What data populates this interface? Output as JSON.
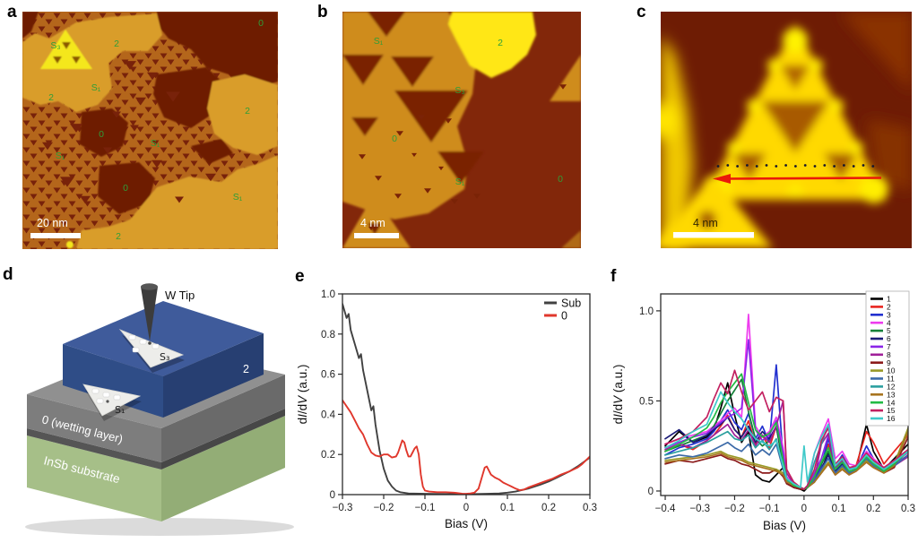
{
  "figure": {
    "panel_letters": {
      "a": "a",
      "b": "b",
      "c": "c",
      "d": "d",
      "e": "e",
      "f": "f"
    },
    "colors": {
      "stm_dark": "#6e1f04",
      "stm_terrace": "#b4661b",
      "stm_terrace_b": "#cf8c1e",
      "stm_light": "#d99d2b",
      "stm_bright": "#f4e71d",
      "label_green": "#2f9e38",
      "arrow_red": "#ea1a0a",
      "sub_curve": "#414141",
      "o_curve": "#e0372c"
    },
    "panel_a": {
      "scale_bar": "20 nm",
      "labels": [
        "S₃",
        "2",
        "0",
        "2",
        "S₁",
        "2",
        "0",
        "S₁",
        "S₁",
        "0",
        "S₁",
        "2"
      ]
    },
    "panel_b": {
      "scale_bar": "4 nm",
      "labels": [
        "S₁",
        "2",
        "S₃",
        "0",
        "S₁",
        "0"
      ]
    },
    "panel_c": {
      "scale_bar": "4 nm",
      "profile_dots": 17
    },
    "panel_d": {
      "tip": "W Tip",
      "s3": "S₃",
      "s1": "S₁",
      "layer2": "2",
      "wetting": "0 (wetting layer)",
      "substrate": "InSb substrate"
    }
  },
  "chart_data": [
    {
      "id": "e",
      "type": "line",
      "xlabel": "Bias (V)",
      "ylabel_parts": [
        {
          "t": "d",
          "i": false
        },
        {
          "t": "I",
          "i": true
        },
        {
          "t": "/d",
          "i": false
        },
        {
          "t": "V",
          "i": true
        },
        {
          "t": " (a.u.)",
          "i": false
        }
      ],
      "xlim": [
        -0.3,
        0.3
      ],
      "ylim": [
        0,
        1.0
      ],
      "grid": false,
      "legend_position": "top-right",
      "xticks": {
        "values": [
          -0.3,
          -0.2,
          -0.1,
          0,
          0.1,
          0.2,
          0.3
        ],
        "labels": [
          "−0.3",
          "−0.2",
          "−0.1",
          "0",
          "0.1",
          "0.2",
          "0.3"
        ]
      },
      "yticks": {
        "values": [
          0,
          0.2,
          0.4,
          0.6,
          0.8,
          1.0
        ],
        "labels": [
          "0",
          "0.2",
          "0.4",
          "0.6",
          "0.8",
          "1.0"
        ]
      },
      "series": [
        {
          "name": "Sub",
          "color": "#414141",
          "x": [
            -0.3,
            -0.29,
            -0.285,
            -0.28,
            -0.27,
            -0.26,
            -0.255,
            -0.25,
            -0.24,
            -0.23,
            -0.225,
            -0.22,
            -0.21,
            -0.2,
            -0.19,
            -0.18,
            -0.17,
            -0.16,
            -0.14,
            -0.1,
            -0.05,
            0.0,
            0.05,
            0.08,
            0.1,
            0.12,
            0.15,
            0.18,
            0.2,
            0.22,
            0.25,
            0.27,
            0.3
          ],
          "y": [
            0.95,
            0.88,
            0.9,
            0.82,
            0.75,
            0.68,
            0.7,
            0.62,
            0.52,
            0.42,
            0.44,
            0.35,
            0.22,
            0.13,
            0.07,
            0.04,
            0.02,
            0.012,
            0.006,
            0.004,
            0.003,
            0.002,
            0.004,
            0.006,
            0.01,
            0.015,
            0.03,
            0.05,
            0.065,
            0.085,
            0.115,
            0.14,
            0.185
          ]
        },
        {
          "name": "0",
          "color": "#e0372c",
          "x": [
            -0.3,
            -0.29,
            -0.28,
            -0.27,
            -0.26,
            -0.25,
            -0.24,
            -0.23,
            -0.22,
            -0.21,
            -0.2,
            -0.19,
            -0.18,
            -0.17,
            -0.165,
            -0.16,
            -0.155,
            -0.15,
            -0.145,
            -0.14,
            -0.135,
            -0.13,
            -0.125,
            -0.12,
            -0.115,
            -0.11,
            -0.105,
            -0.1,
            -0.09,
            -0.07,
            -0.05,
            -0.03,
            -0.01,
            0.0,
            0.01,
            0.02,
            0.03,
            0.04,
            0.045,
            0.05,
            0.055,
            0.06,
            0.07,
            0.08,
            0.09,
            0.1,
            0.11,
            0.12,
            0.13,
            0.14,
            0.15,
            0.17,
            0.19,
            0.21,
            0.23,
            0.25,
            0.27,
            0.28,
            0.3
          ],
          "y": [
            0.47,
            0.44,
            0.41,
            0.37,
            0.33,
            0.3,
            0.25,
            0.21,
            0.195,
            0.19,
            0.2,
            0.2,
            0.185,
            0.19,
            0.21,
            0.24,
            0.27,
            0.26,
            0.22,
            0.19,
            0.19,
            0.21,
            0.23,
            0.24,
            0.2,
            0.1,
            0.04,
            0.02,
            0.015,
            0.012,
            0.012,
            0.01,
            0.005,
            0.004,
            0.006,
            0.01,
            0.03,
            0.1,
            0.135,
            0.14,
            0.12,
            0.1,
            0.085,
            0.075,
            0.06,
            0.05,
            0.04,
            0.03,
            0.022,
            0.025,
            0.035,
            0.05,
            0.065,
            0.08,
            0.1,
            0.115,
            0.135,
            0.15,
            0.19
          ]
        }
      ]
    },
    {
      "id": "f",
      "type": "line",
      "xlabel": "Bias (V)",
      "ylabel_parts": [
        {
          "t": "d",
          "i": false
        },
        {
          "t": "I",
          "i": true
        },
        {
          "t": "/d",
          "i": false
        },
        {
          "t": "V",
          "i": true
        },
        {
          "t": " (a.u.)",
          "i": false
        }
      ],
      "xlim": [
        -0.413,
        0.3
      ],
      "ylim": [
        -0.025,
        1.094
      ],
      "grid": false,
      "legend_position": "top-right-box",
      "xticks": {
        "values": [
          -0.4,
          -0.3,
          -0.2,
          -0.1,
          0,
          0.1,
          0.2,
          0.3
        ],
        "labels": [
          "−0.4",
          "−0.3",
          "−0.2",
          "−0.1",
          "0",
          "0.1",
          "0.2",
          "0.3"
        ]
      },
      "yticks": {
        "values": [
          0,
          0.5,
          1.0
        ],
        "labels": [
          "0",
          "0.5",
          "1.0"
        ]
      },
      "x": [
        -0.4,
        -0.36,
        -0.32,
        -0.28,
        -0.26,
        -0.24,
        -0.22,
        -0.2,
        -0.18,
        -0.16,
        -0.14,
        -0.12,
        -0.1,
        -0.08,
        -0.06,
        -0.05,
        -0.03,
        -0.01,
        0.0,
        0.01,
        0.03,
        0.05,
        0.07,
        0.09,
        0.11,
        0.13,
        0.15,
        0.18,
        0.2,
        0.23,
        0.26,
        0.3
      ],
      "series": [
        {
          "name": "1",
          "color": "#000000",
          "y": [
            0.25,
            0.33,
            0.27,
            0.3,
            0.34,
            0.46,
            0.6,
            0.42,
            0.27,
            0.33,
            0.09,
            0.06,
            0.05,
            0.09,
            0.13,
            0.05,
            0.02,
            0.01,
            0.0,
            0.02,
            0.05,
            0.12,
            0.21,
            0.1,
            0.15,
            0.1,
            0.12,
            0.37,
            0.22,
            0.12,
            0.18,
            0.26
          ]
        },
        {
          "name": "2",
          "color": "#e8251f",
          "y": [
            0.22,
            0.26,
            0.23,
            0.28,
            0.31,
            0.36,
            0.42,
            0.34,
            0.3,
            0.39,
            0.26,
            0.31,
            0.24,
            0.36,
            0.14,
            0.05,
            0.03,
            0.02,
            0.01,
            0.03,
            0.08,
            0.15,
            0.26,
            0.12,
            0.18,
            0.12,
            0.14,
            0.33,
            0.27,
            0.15,
            0.22,
            0.31
          ]
        },
        {
          "name": "3",
          "color": "#2230cf",
          "y": [
            0.2,
            0.24,
            0.26,
            0.29,
            0.33,
            0.39,
            0.45,
            0.38,
            0.34,
            0.43,
            0.29,
            0.36,
            0.27,
            0.7,
            0.18,
            0.06,
            0.03,
            0.02,
            0.01,
            0.02,
            0.06,
            0.14,
            0.29,
            0.14,
            0.2,
            0.13,
            0.12,
            0.25,
            0.18,
            0.12,
            0.16,
            0.22
          ]
        },
        {
          "name": "4",
          "color": "#ee3cee",
          "y": [
            0.26,
            0.29,
            0.31,
            0.33,
            0.36,
            0.39,
            0.43,
            0.46,
            0.41,
            0.98,
            0.36,
            0.3,
            0.33,
            0.41,
            0.24,
            0.08,
            0.04,
            0.02,
            0.01,
            0.03,
            0.21,
            0.31,
            0.4,
            0.18,
            0.22,
            0.15,
            0.14,
            0.22,
            0.18,
            0.13,
            0.17,
            0.21
          ]
        },
        {
          "name": "5",
          "color": "#16813a",
          "y": [
            0.22,
            0.25,
            0.28,
            0.31,
            0.36,
            0.43,
            0.5,
            0.56,
            0.62,
            0.44,
            0.29,
            0.25,
            0.28,
            0.36,
            0.14,
            0.06,
            0.03,
            0.02,
            0.01,
            0.02,
            0.08,
            0.15,
            0.22,
            0.12,
            0.16,
            0.11,
            0.12,
            0.2,
            0.16,
            0.11,
            0.15,
            0.22
          ]
        },
        {
          "name": "6",
          "color": "#1b1b78",
          "y": [
            0.29,
            0.34,
            0.27,
            0.31,
            0.34,
            0.37,
            0.41,
            0.34,
            0.3,
            0.36,
            0.27,
            0.33,
            0.29,
            0.36,
            0.17,
            0.06,
            0.03,
            0.02,
            0.01,
            0.02,
            0.06,
            0.12,
            0.2,
            0.11,
            0.15,
            0.1,
            0.12,
            0.18,
            0.15,
            0.11,
            0.14,
            0.2
          ]
        },
        {
          "name": "7",
          "color": "#8a25e8",
          "y": [
            0.24,
            0.27,
            0.3,
            0.32,
            0.35,
            0.38,
            0.41,
            0.43,
            0.46,
            0.84,
            0.34,
            0.28,
            0.31,
            0.39,
            0.21,
            0.07,
            0.03,
            0.02,
            0.01,
            0.02,
            0.1,
            0.18,
            0.31,
            0.14,
            0.18,
            0.12,
            0.13,
            0.2,
            0.16,
            0.12,
            0.15,
            0.2
          ]
        },
        {
          "name": "8",
          "color": "#a0209a",
          "y": [
            0.23,
            0.26,
            0.24,
            0.28,
            0.31,
            0.34,
            0.37,
            0.31,
            0.28,
            0.34,
            0.25,
            0.31,
            0.27,
            0.36,
            0.5,
            0.1,
            0.04,
            0.02,
            0.01,
            0.02,
            0.07,
            0.26,
            0.32,
            0.13,
            0.17,
            0.11,
            0.12,
            0.19,
            0.15,
            0.11,
            0.14,
            0.19
          ]
        },
        {
          "name": "9",
          "color": "#8b1a1a",
          "y": [
            0.15,
            0.17,
            0.16,
            0.18,
            0.19,
            0.2,
            0.18,
            0.17,
            0.15,
            0.14,
            0.12,
            0.1,
            0.1,
            0.12,
            0.08,
            0.04,
            0.02,
            0.01,
            0.01,
            0.02,
            0.05,
            0.1,
            0.15,
            0.09,
            0.12,
            0.09,
            0.11,
            0.16,
            0.13,
            0.1,
            0.13,
            0.3
          ]
        },
        {
          "name": "10",
          "color": "#999926",
          "y": [
            0.17,
            0.18,
            0.19,
            0.2,
            0.21,
            0.22,
            0.2,
            0.19,
            0.18,
            0.16,
            0.15,
            0.14,
            0.13,
            0.12,
            0.1,
            0.05,
            0.03,
            0.02,
            0.01,
            0.02,
            0.06,
            0.11,
            0.16,
            0.1,
            0.13,
            0.1,
            0.12,
            0.17,
            0.14,
            0.11,
            0.15,
            0.35
          ]
        },
        {
          "name": "11",
          "color": "#3c6aa8",
          "y": [
            0.18,
            0.2,
            0.19,
            0.21,
            0.23,
            0.25,
            0.27,
            0.24,
            0.22,
            0.26,
            0.2,
            0.23,
            0.2,
            0.26,
            0.12,
            0.05,
            0.03,
            0.02,
            0.01,
            0.02,
            0.06,
            0.12,
            0.18,
            0.1,
            0.14,
            0.1,
            0.12,
            0.18,
            0.14,
            0.11,
            0.14,
            0.2
          ]
        },
        {
          "name": "12",
          "color": "#2b9f9f",
          "y": [
            0.2,
            0.22,
            0.24,
            0.27,
            0.29,
            0.31,
            0.33,
            0.29,
            0.28,
            0.31,
            0.24,
            0.28,
            0.23,
            0.29,
            0.13,
            0.06,
            0.03,
            0.02,
            0.01,
            0.03,
            0.16,
            0.26,
            0.37,
            0.14,
            0.18,
            0.12,
            0.13,
            0.2,
            0.16,
            0.12,
            0.16,
            0.22
          ]
        },
        {
          "name": "13",
          "color": "#a8741f",
          "y": [
            0.16,
            0.17,
            0.18,
            0.19,
            0.2,
            0.21,
            0.19,
            0.18,
            0.17,
            0.15,
            0.14,
            0.13,
            0.12,
            0.11,
            0.09,
            0.05,
            0.03,
            0.02,
            0.01,
            0.02,
            0.05,
            0.1,
            0.15,
            0.09,
            0.12,
            0.09,
            0.11,
            0.16,
            0.13,
            0.1,
            0.14,
            0.33
          ]
        },
        {
          "name": "14",
          "color": "#22bb44",
          "y": [
            0.22,
            0.26,
            0.3,
            0.35,
            0.41,
            0.49,
            0.55,
            0.6,
            0.65,
            0.49,
            0.34,
            0.3,
            0.32,
            0.38,
            0.17,
            0.07,
            0.03,
            0.02,
            0.01,
            0.02,
            0.08,
            0.16,
            0.24,
            0.12,
            0.16,
            0.11,
            0.12,
            0.19,
            0.15,
            0.11,
            0.15,
            0.22
          ]
        },
        {
          "name": "15",
          "color": "#c22060",
          "y": [
            0.26,
            0.29,
            0.33,
            0.41,
            0.51,
            0.6,
            0.54,
            0.67,
            0.55,
            0.45,
            0.5,
            0.55,
            0.44,
            0.52,
            0.5,
            0.12,
            0.05,
            0.02,
            0.01,
            0.03,
            0.12,
            0.28,
            0.35,
            0.15,
            0.19,
            0.13,
            0.14,
            0.21,
            0.17,
            0.13,
            0.17,
            0.23
          ]
        },
        {
          "name": "16",
          "color": "#3fc9c9",
          "y": [
            0.24,
            0.28,
            0.33,
            0.37,
            0.46,
            0.55,
            0.49,
            0.44,
            0.4,
            0.34,
            0.29,
            0.27,
            0.25,
            0.28,
            0.14,
            0.07,
            0.04,
            0.02,
            0.25,
            0.05,
            0.21,
            0.3,
            0.37,
            0.14,
            0.18,
            0.12,
            0.13,
            0.2,
            0.16,
            0.12,
            0.16,
            0.22
          ]
        }
      ]
    }
  ]
}
